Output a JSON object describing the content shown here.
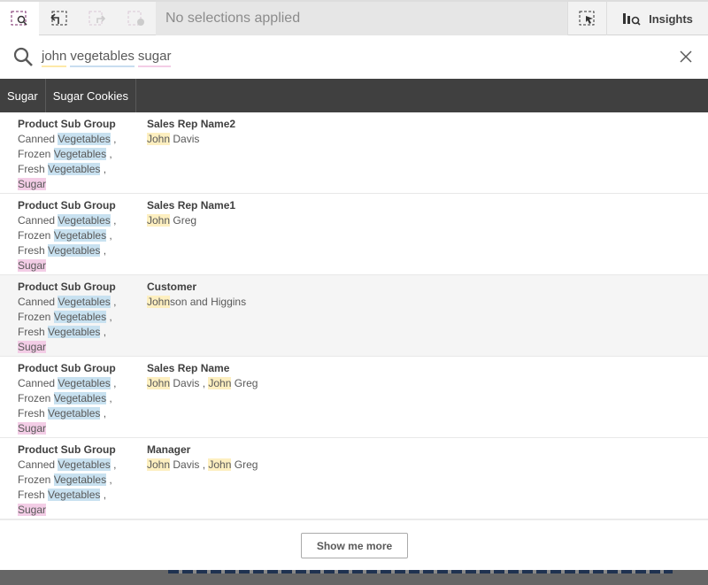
{
  "toolbar": {
    "selections_text": "No selections applied",
    "insights_label": "Insights",
    "icons": [
      "smart-search-icon",
      "step-back-icon",
      "step-forward-icon",
      "clear-selections-icon",
      "selection-tool-icon",
      "insights-icon"
    ]
  },
  "search": {
    "terms": [
      {
        "text": "john",
        "color": "#fde9a8"
      },
      {
        "text": "vegetables",
        "color": "#c8ddf0"
      },
      {
        "text": "sugar",
        "color": "#f3cde6"
      }
    ]
  },
  "chips": [
    "Sugar",
    "Sugar Cookies"
  ],
  "results": [
    {
      "left": {
        "label": "Product Sub Group",
        "lines": [
          [
            {
              "t": "Canned "
            },
            {
              "t": "Vegetables",
              "h": "b"
            },
            {
              "t": " ,"
            }
          ],
          [
            {
              "t": "Frozen "
            },
            {
              "t": "Vegetables",
              "h": "b"
            },
            {
              "t": " ,"
            }
          ],
          [
            {
              "t": "Fresh "
            },
            {
              "t": "Vegetables",
              "h": "b"
            },
            {
              "t": " ,"
            }
          ],
          [
            {
              "t": "Sugar",
              "h": "p"
            }
          ]
        ]
      },
      "right": {
        "label": "Sales Rep Name2",
        "lines": [
          [
            {
              "t": "John",
              "h": "y"
            },
            {
              "t": " Davis"
            }
          ]
        ]
      }
    },
    {
      "left": {
        "label": "Product Sub Group",
        "lines": [
          [
            {
              "t": "Canned "
            },
            {
              "t": "Vegetables",
              "h": "b"
            },
            {
              "t": " ,"
            }
          ],
          [
            {
              "t": "Frozen "
            },
            {
              "t": "Vegetables",
              "h": "b"
            },
            {
              "t": " ,"
            }
          ],
          [
            {
              "t": "Fresh "
            },
            {
              "t": "Vegetables",
              "h": "b"
            },
            {
              "t": " ,"
            }
          ],
          [
            {
              "t": "Sugar",
              "h": "p"
            }
          ]
        ]
      },
      "right": {
        "label": "Sales Rep Name1",
        "lines": [
          [
            {
              "t": "John",
              "h": "y"
            },
            {
              "t": " Greg"
            }
          ]
        ]
      }
    },
    {
      "left": {
        "label": "Product Sub Group",
        "lines": [
          [
            {
              "t": "Canned "
            },
            {
              "t": "Vegetables",
              "h": "b"
            },
            {
              "t": " ,"
            }
          ],
          [
            {
              "t": "Frozen "
            },
            {
              "t": "Vegetables",
              "h": "b"
            },
            {
              "t": " ,"
            }
          ],
          [
            {
              "t": "Fresh "
            },
            {
              "t": "Vegetables",
              "h": "b"
            },
            {
              "t": " ,"
            }
          ],
          [
            {
              "t": "Sugar",
              "h": "p"
            }
          ]
        ]
      },
      "right": {
        "label": "Customer",
        "lines": [
          [
            {
              "t": "John",
              "h": "y"
            },
            {
              "t": "son and Higgins"
            }
          ]
        ]
      }
    },
    {
      "left": {
        "label": "Product Sub Group",
        "lines": [
          [
            {
              "t": "Canned "
            },
            {
              "t": "Vegetables",
              "h": "b"
            },
            {
              "t": " ,"
            }
          ],
          [
            {
              "t": "Frozen "
            },
            {
              "t": "Vegetables",
              "h": "b"
            },
            {
              "t": " ,"
            }
          ],
          [
            {
              "t": "Fresh "
            },
            {
              "t": "Vegetables",
              "h": "b"
            },
            {
              "t": " ,"
            }
          ],
          [
            {
              "t": "Sugar",
              "h": "p"
            }
          ]
        ]
      },
      "right": {
        "label": "Sales Rep Name",
        "lines": [
          [
            {
              "t": "John",
              "h": "y"
            },
            {
              "t": " Davis , "
            },
            {
              "t": "John",
              "h": "y"
            },
            {
              "t": " Greg"
            }
          ]
        ]
      }
    },
    {
      "left": {
        "label": "Product Sub Group",
        "lines": [
          [
            {
              "t": "Canned "
            },
            {
              "t": "Vegetables",
              "h": "b"
            },
            {
              "t": " ,"
            }
          ],
          [
            {
              "t": "Frozen "
            },
            {
              "t": "Vegetables",
              "h": "b"
            },
            {
              "t": " ,"
            }
          ],
          [
            {
              "t": "Fresh "
            },
            {
              "t": "Vegetables",
              "h": "b"
            },
            {
              "t": " ,"
            }
          ],
          [
            {
              "t": "Sugar",
              "h": "p"
            }
          ]
        ]
      },
      "right": {
        "label": "Manager",
        "lines": [
          [
            {
              "t": "John",
              "h": "y"
            },
            {
              "t": " Davis , "
            },
            {
              "t": "John",
              "h": "y"
            },
            {
              "t": " Greg"
            }
          ]
        ]
      }
    }
  ],
  "show_more_label": "Show me more"
}
